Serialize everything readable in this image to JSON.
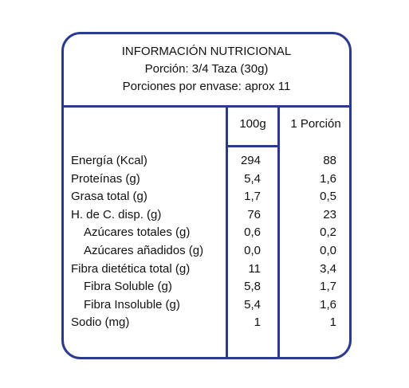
{
  "header": {
    "title": "INFORMACIÓN NUTRICIONAL",
    "portion": "Porción: 3/4 Taza (30g)",
    "servings": "Porciones por envase: aprox 11"
  },
  "columns": {
    "per_100g": "100g",
    "per_portion": "1 Porción"
  },
  "rows": [
    {
      "name": "Energía (Kcal)",
      "v100": "294",
      "vport": "88"
    },
    {
      "name": "Proteínas (g)",
      "v100": "5,4",
      "vport": "1,6"
    },
    {
      "name": "Grasa total (g)",
      "v100": "1,7",
      "vport": "0,5"
    },
    {
      "name": "H. de C. disp. (g)",
      "v100": "76",
      "vport": "23"
    },
    {
      "name": "Azúcares totales (g)",
      "v100": "0,6",
      "vport": "0,2"
    },
    {
      "name": "Azúcares añadidos (g)",
      "v100": "0,0",
      "vport": "0,0"
    },
    {
      "name": "Fibra dietética total (g)",
      "v100": "11",
      "vport": "3,4"
    },
    {
      "name": "Fibra Soluble (g)",
      "v100": "5,8",
      "vport": "1,7"
    },
    {
      "name": "Fibra Insoluble (g)",
      "v100": "5,4",
      "vport": "1,6"
    },
    {
      "name": "Sodio (mg)",
      "v100": "1",
      "vport": "1"
    }
  ],
  "colors": {
    "border": "#2a3b8f",
    "text": "#111111"
  }
}
